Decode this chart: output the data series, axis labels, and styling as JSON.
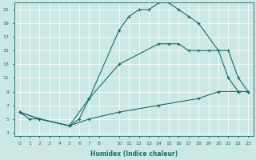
{
  "xlabel": "Humidex (Indice chaleur)",
  "xlim": [
    -0.5,
    23.5
  ],
  "ylim": [
    2.5,
    22
  ],
  "yticks": [
    3,
    5,
    7,
    9,
    11,
    13,
    15,
    17,
    19,
    21
  ],
  "xticks": [
    0,
    1,
    2,
    3,
    4,
    5,
    6,
    7,
    8,
    10,
    11,
    12,
    13,
    14,
    15,
    16,
    17,
    18,
    19,
    20,
    21,
    22,
    23
  ],
  "bg_color": "#cce8e4",
  "line_color": "#1a6b6b",
  "line_width": 0.8,
  "marker": "+",
  "marker_size": 3,
  "marker_ew": 0.8,
  "curves": [
    {
      "x": [
        0,
        1,
        2,
        5,
        6,
        7,
        10,
        11,
        12,
        13,
        14,
        15,
        16,
        17,
        18,
        20,
        21,
        22,
        23
      ],
      "y": [
        6,
        5,
        5,
        4,
        5,
        8,
        18,
        20,
        21,
        21,
        22,
        22,
        21,
        20,
        19,
        15,
        11,
        9,
        9
      ]
    },
    {
      "x": [
        0,
        2,
        5,
        7,
        10,
        14,
        15,
        16,
        17,
        18,
        19,
        20,
        21,
        22,
        23
      ],
      "y": [
        6,
        5,
        4,
        8,
        13,
        16,
        16,
        16,
        15,
        15,
        15,
        15,
        15,
        11,
        9
      ]
    },
    {
      "x": [
        0,
        2,
        5,
        7,
        10,
        14,
        18,
        20,
        22,
        23
      ],
      "y": [
        6,
        5,
        4,
        5,
        6,
        7,
        8,
        9,
        9,
        9
      ]
    }
  ]
}
